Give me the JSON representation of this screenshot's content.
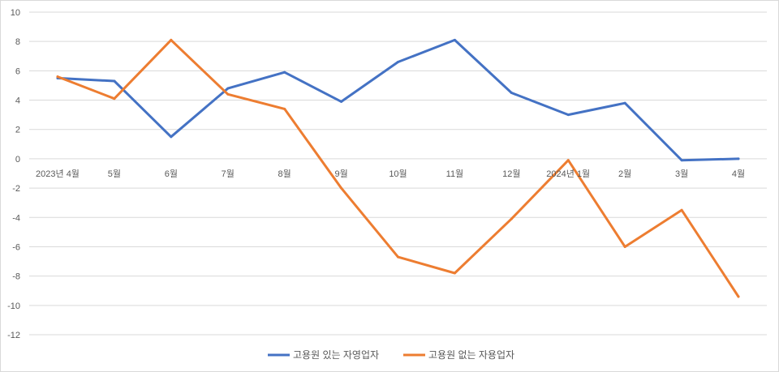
{
  "chart_data": {
    "type": "line",
    "title": "",
    "xlabel": "",
    "ylabel": "",
    "ylim": [
      -12,
      10
    ],
    "y_ticks": [
      10,
      8,
      6,
      4,
      2,
      0,
      -2,
      -4,
      -6,
      -8,
      -10,
      -12
    ],
    "categories": [
      "2023년 4월",
      "5월",
      "6월",
      "7월",
      "8월",
      "9월",
      "10월",
      "11월",
      "12월",
      "2024년 1월",
      "2월",
      "3월",
      "4월"
    ],
    "grid": "horizontal",
    "legend_position": "bottom",
    "series": [
      {
        "name": "고용원 있는 자영업자",
        "color": "#4472c4",
        "values": [
          5.5,
          5.3,
          1.5,
          4.8,
          5.9,
          3.9,
          6.6,
          8.1,
          4.5,
          3.0,
          3.8,
          -0.1,
          0.0
        ]
      },
      {
        "name": "고용원 없는 자용업자",
        "color": "#ed7d31",
        "values": [
          5.6,
          4.1,
          8.1,
          4.4,
          3.4,
          -2.0,
          -6.7,
          -7.8,
          -4.1,
          -0.1,
          -6.0,
          -3.5,
          -9.4
        ]
      }
    ]
  }
}
